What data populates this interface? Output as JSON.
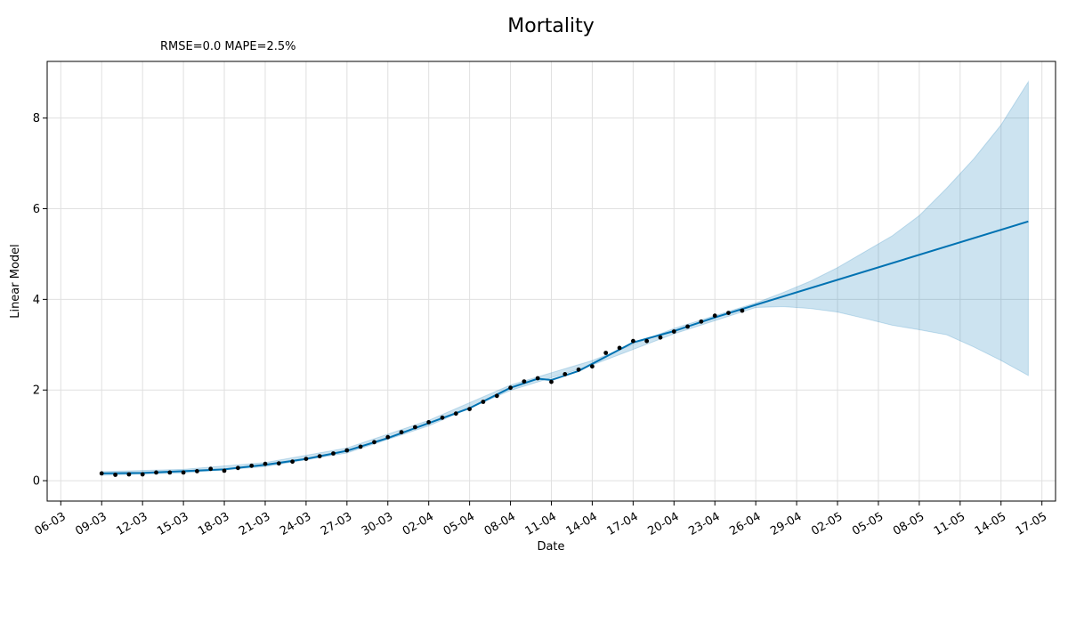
{
  "chart_data": {
    "type": "line",
    "title": "Mortality",
    "subtitle": "RMSE=0.0 MAPE=2.5%",
    "xlabel": "Date",
    "ylabel": "Linear Model",
    "x_tick_labels": [
      "06-03",
      "09-03",
      "12-03",
      "15-03",
      "18-03",
      "21-03",
      "24-03",
      "27-03",
      "30-03",
      "02-04",
      "05-04",
      "08-04",
      "11-04",
      "14-04",
      "17-04",
      "20-04",
      "23-04",
      "26-04",
      "29-04",
      "02-05",
      "05-05",
      "08-05",
      "11-05",
      "14-05",
      "17-05"
    ],
    "y_ticks": [
      0,
      2,
      4,
      6,
      8
    ],
    "ylim": [
      -0.45,
      9.25
    ],
    "xlim": [
      "2020-03-05",
      "2020-05-18"
    ],
    "grid": true,
    "colors": {
      "forecast_line": "#0072B2",
      "interval_fill": "#0072B2",
      "observed_points": "#000000",
      "grid": "#e0e0e0"
    },
    "series": [
      {
        "name": "",
        "kind": "observed",
        "points": [
          [
            "2020-03-09",
            0.16
          ],
          [
            "2020-03-10",
            0.13
          ],
          [
            "2020-03-11",
            0.14
          ],
          [
            "2020-03-12",
            0.14
          ],
          [
            "2020-03-13",
            0.18
          ],
          [
            "2020-03-14",
            0.18
          ],
          [
            "2020-03-15",
            0.18
          ],
          [
            "2020-03-16",
            0.21
          ],
          [
            "2020-03-17",
            0.26
          ],
          [
            "2020-03-18",
            0.22
          ],
          [
            "2020-03-19",
            0.28
          ],
          [
            "2020-03-20",
            0.33
          ],
          [
            "2020-03-21",
            0.37
          ],
          [
            "2020-03-22",
            0.38
          ],
          [
            "2020-03-23",
            0.42
          ],
          [
            "2020-03-24",
            0.48
          ],
          [
            "2020-03-25",
            0.54
          ],
          [
            "2020-03-26",
            0.6
          ],
          [
            "2020-03-27",
            0.67
          ],
          [
            "2020-03-28",
            0.75
          ],
          [
            "2020-03-29",
            0.85
          ],
          [
            "2020-03-30",
            0.96
          ],
          [
            "2020-03-31",
            1.07
          ],
          [
            "2020-04-01",
            1.18
          ],
          [
            "2020-04-02",
            1.29
          ],
          [
            "2020-04-03",
            1.39
          ],
          [
            "2020-04-04",
            1.48
          ],
          [
            "2020-04-05",
            1.58
          ],
          [
            "2020-04-06",
            1.74
          ],
          [
            "2020-04-07",
            1.87
          ],
          [
            "2020-04-08",
            2.05
          ],
          [
            "2020-04-09",
            2.19
          ],
          [
            "2020-04-10",
            2.26
          ],
          [
            "2020-04-11",
            2.18
          ],
          [
            "2020-04-12",
            2.35
          ],
          [
            "2020-04-13",
            2.45
          ],
          [
            "2020-04-14",
            2.52
          ],
          [
            "2020-04-15",
            2.82
          ],
          [
            "2020-04-16",
            2.93
          ],
          [
            "2020-04-17",
            3.08
          ],
          [
            "2020-04-18",
            3.08
          ],
          [
            "2020-04-19",
            3.16
          ],
          [
            "2020-04-20",
            3.29
          ],
          [
            "2020-04-21",
            3.4
          ],
          [
            "2020-04-22",
            3.51
          ],
          [
            "2020-04-23",
            3.64
          ],
          [
            "2020-04-24",
            3.7
          ],
          [
            "2020-04-25",
            3.75
          ]
        ]
      },
      {
        "name": "",
        "kind": "fitted",
        "points": [
          [
            "2020-03-09",
            0.16
          ],
          [
            "2020-03-12",
            0.17
          ],
          [
            "2020-03-15",
            0.21
          ],
          [
            "2020-03-18",
            0.25
          ],
          [
            "2020-03-21",
            0.35
          ],
          [
            "2020-03-24",
            0.48
          ],
          [
            "2020-03-27",
            0.66
          ],
          [
            "2020-03-30",
            0.94
          ],
          [
            "2020-04-02",
            1.27
          ],
          [
            "2020-04-05",
            1.6
          ],
          [
            "2020-04-08",
            2.05
          ],
          [
            "2020-04-10",
            2.25
          ],
          [
            "2020-04-11",
            2.22
          ],
          [
            "2020-04-13",
            2.42
          ],
          [
            "2020-04-17",
            3.05
          ],
          [
            "2020-04-20",
            3.3
          ],
          [
            "2020-04-23",
            3.6
          ],
          [
            "2020-04-26",
            3.88
          ],
          [
            "2020-05-16",
            5.72
          ]
        ]
      },
      {
        "name": "",
        "kind": "uncertainty_interval",
        "upper": [
          [
            "2020-03-09",
            0.2
          ],
          [
            "2020-03-15",
            0.25
          ],
          [
            "2020-03-21",
            0.4
          ],
          [
            "2020-03-27",
            0.72
          ],
          [
            "2020-04-02",
            1.33
          ],
          [
            "2020-04-08",
            2.11
          ],
          [
            "2020-04-14",
            2.65
          ],
          [
            "2020-04-20",
            3.36
          ],
          [
            "2020-04-26",
            3.92
          ],
          [
            "2020-04-28",
            4.15
          ],
          [
            "2020-04-30",
            4.4
          ],
          [
            "2020-05-02",
            4.7
          ],
          [
            "2020-05-04",
            5.05
          ],
          [
            "2020-05-06",
            5.4
          ],
          [
            "2020-05-08",
            5.85
          ],
          [
            "2020-05-10",
            6.45
          ],
          [
            "2020-05-12",
            7.1
          ],
          [
            "2020-05-14",
            7.85
          ],
          [
            "2020-05-16",
            8.8
          ]
        ],
        "lower": [
          [
            "2020-03-09",
            0.12
          ],
          [
            "2020-03-15",
            0.17
          ],
          [
            "2020-03-21",
            0.31
          ],
          [
            "2020-03-27",
            0.61
          ],
          [
            "2020-04-02",
            1.21
          ],
          [
            "2020-04-08",
            1.99
          ],
          [
            "2020-04-14",
            2.55
          ],
          [
            "2020-04-20",
            3.24
          ],
          [
            "2020-04-26",
            3.82
          ],
          [
            "2020-04-28",
            3.84
          ],
          [
            "2020-04-30",
            3.8
          ],
          [
            "2020-05-02",
            3.72
          ],
          [
            "2020-05-04",
            3.58
          ],
          [
            "2020-05-06",
            3.43
          ],
          [
            "2020-05-08",
            3.33
          ],
          [
            "2020-05-10",
            3.22
          ],
          [
            "2020-05-12",
            2.95
          ],
          [
            "2020-05-14",
            2.65
          ],
          [
            "2020-05-16",
            2.32
          ]
        ]
      }
    ]
  }
}
